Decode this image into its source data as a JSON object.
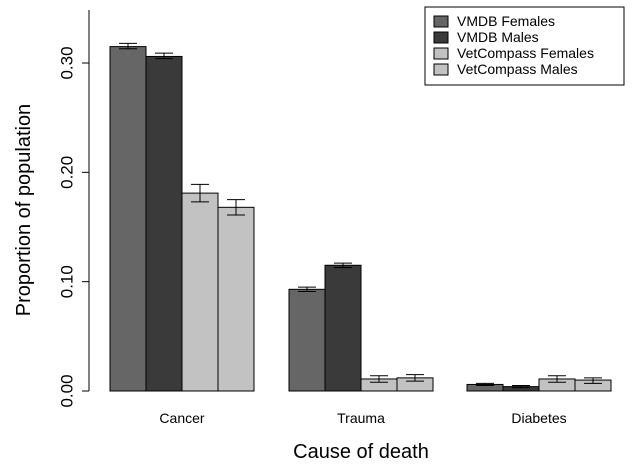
{
  "chart_data": {
    "type": "bar",
    "title": "",
    "xlabel": "Cause of death",
    "ylabel": "Proportion of population",
    "ylim": [
      0,
      0.35
    ],
    "yticks": [
      0.0,
      0.1,
      0.2,
      0.3
    ],
    "ytick_labels": [
      "0.00",
      "0.10",
      "0.20",
      "0.30"
    ],
    "grid": false,
    "legend_position": "top-right",
    "categories": [
      "Cancer",
      "Trauma",
      "Diabetes"
    ],
    "series": [
      {
        "name": "VMDB Females",
        "color": "#666666",
        "values": [
          0.315,
          0.093,
          0.006
        ],
        "error_low": [
          0.313,
          0.091,
          0.005
        ],
        "error_high": [
          0.318,
          0.095,
          0.007
        ]
      },
      {
        "name": "VMDB Males",
        "color": "#3a3a3a",
        "values": [
          0.306,
          0.115,
          0.004
        ],
        "error_low": [
          0.304,
          0.113,
          0.003
        ],
        "error_high": [
          0.309,
          0.117,
          0.005
        ]
      },
      {
        "name": "VetCompass Females",
        "color": "#c2c2c2",
        "values": [
          0.181,
          0.011,
          0.011
        ],
        "error_low": [
          0.173,
          0.008,
          0.008
        ],
        "error_high": [
          0.189,
          0.014,
          0.014
        ]
      },
      {
        "name": "VetCompass Males",
        "color": "#c2c2c2",
        "values": [
          0.168,
          0.012,
          0.01
        ],
        "error_low": [
          0.161,
          0.009,
          0.007
        ],
        "error_high": [
          0.175,
          0.015,
          0.012
        ]
      }
    ]
  }
}
